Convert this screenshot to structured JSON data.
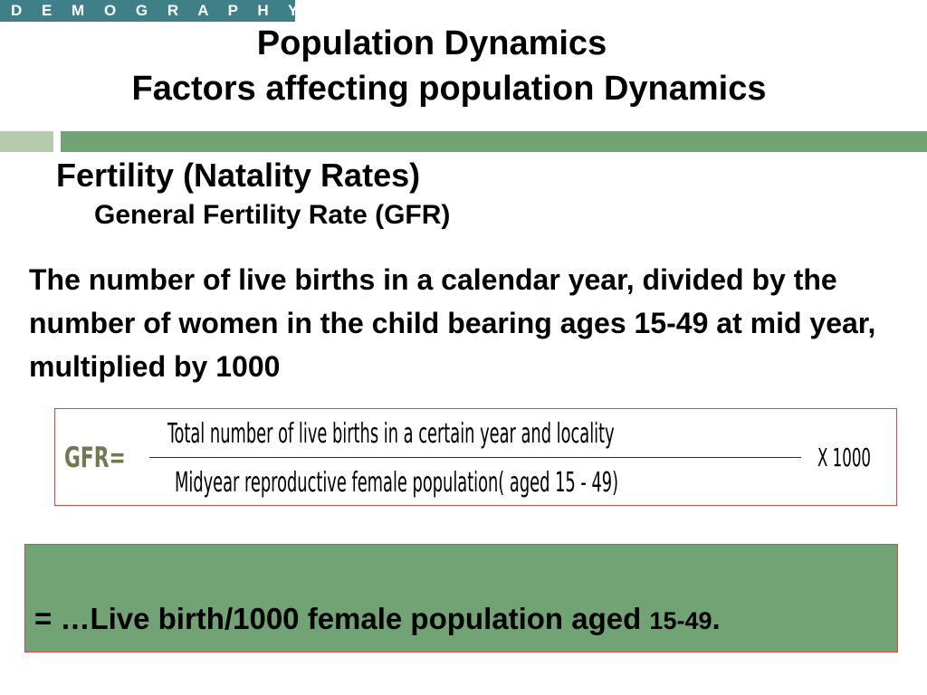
{
  "header": {
    "tag": "D E M O G R A P H Y",
    "title_line1": "Population Dynamics",
    "title_line2": "Factors affecting population Dynamics"
  },
  "section": {
    "heading": "Fertility (Natality Rates)",
    "subheading": "General Fertility Rate (GFR)"
  },
  "definition": "The number of live births in a calendar year, divided by the number of women in the child bearing ages 15-49 at mid year, multiplied by 1000",
  "formula": {
    "label": "GFR=",
    "numerator": "Total number of live births in a certain year and locality",
    "denominator": "Midyear reproductive female population( aged 15 - 49)",
    "multiplier": "X 1000"
  },
  "result": {
    "text_main": "= …Live birth/1000 female population aged ",
    "text_tail": "15-49",
    "text_end": "."
  },
  "colors": {
    "tag_bg": "#3e7f88",
    "bar_light": "#b4ccac",
    "bar_green": "#71a375",
    "border_red": "#d84a4a",
    "formula_label": "#6e7a50"
  }
}
